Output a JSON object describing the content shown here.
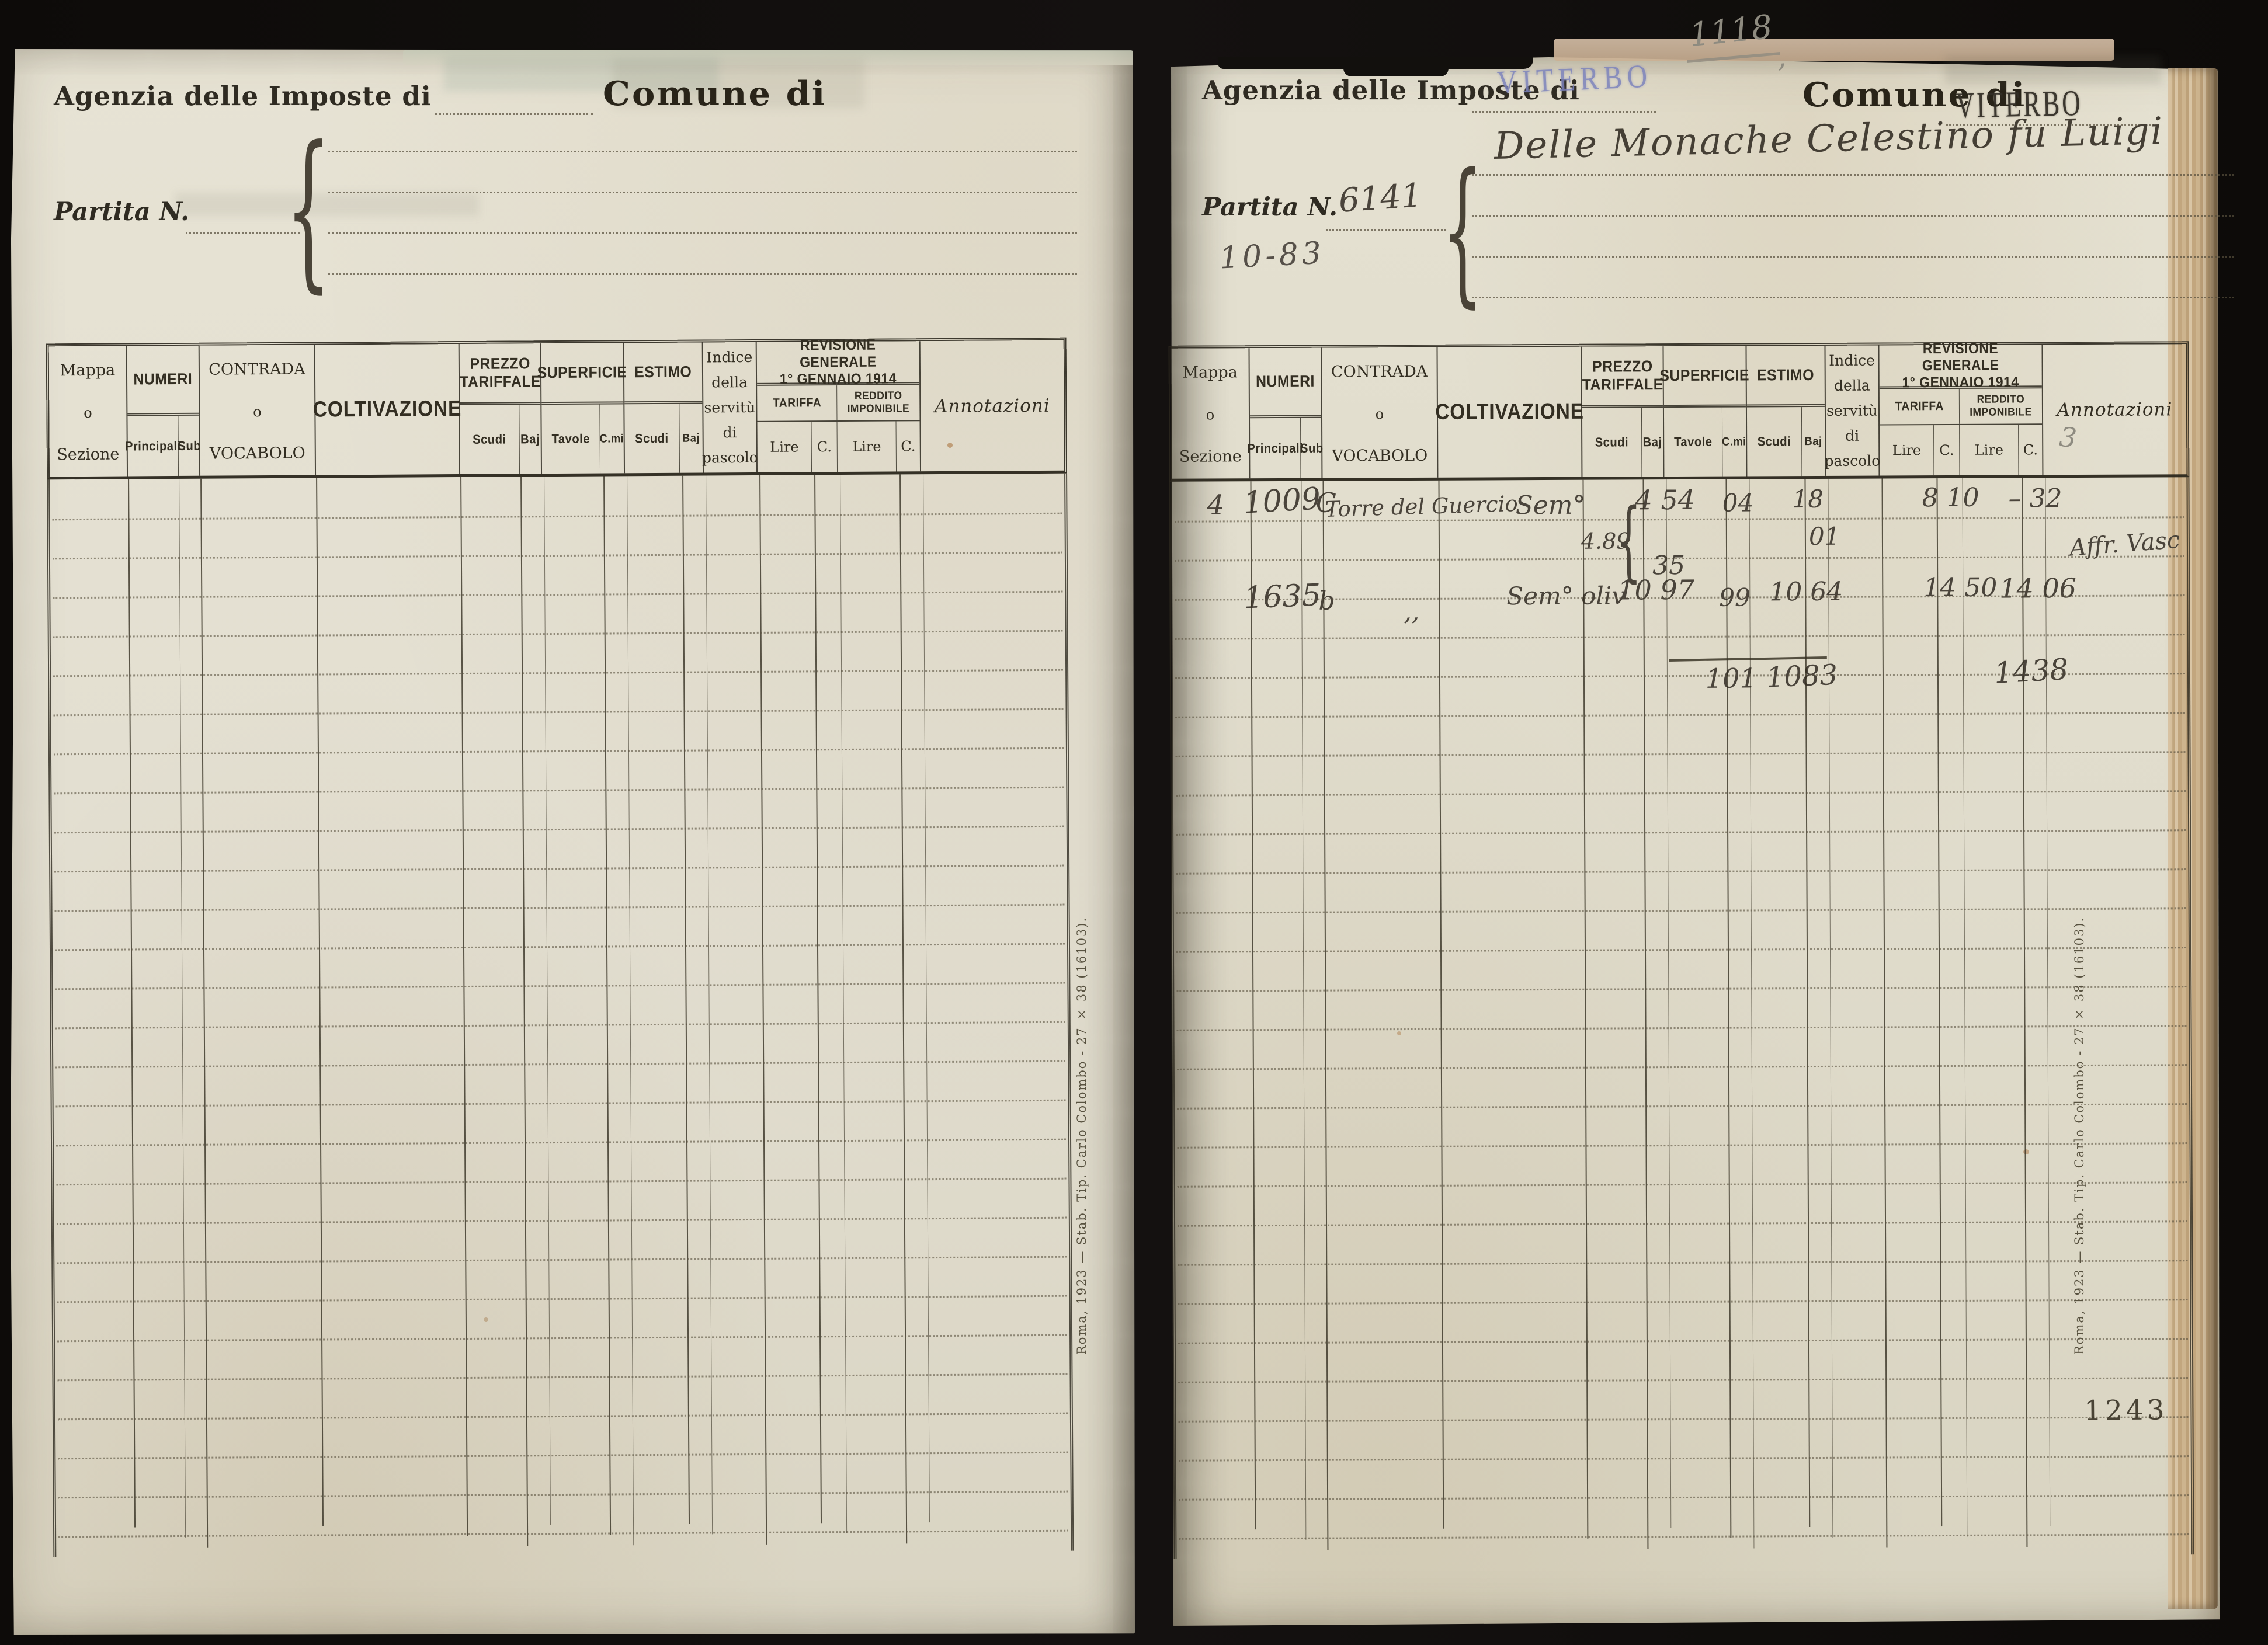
{
  "document": {
    "page_stamp": "1243",
    "imprint": "Roma, 1923 — Stab. Tip. Carlo Colombo - 27 × 38 (16103).",
    "brace_glyph": "{"
  },
  "left_page": {
    "agency_label": "Agenzia delle Imposte di",
    "comune_label": "Comune di",
    "partita_label": "Partita N."
  },
  "right_page": {
    "agency_label": "Agenzia delle Imposte di",
    "agency_stamp": "VITERBO",
    "comune_label": "Comune di",
    "comune_stamp": "VITERBO",
    "partita_label": "Partita N.",
    "partita_number": "6141",
    "partita_note": "10-83",
    "folio_pencil": "1118",
    "folio_pencil_mark": ",",
    "pencil_col_note": "3",
    "holder_name": "Delle Monache Celestino fu Luigi"
  },
  "table_header": {
    "mappa": "Mappa",
    "o1": "o",
    "sezione": "Sezione",
    "numeri": "NUMERI",
    "principali": "Principali",
    "sub": "Sub",
    "contrada": "CONTRADA",
    "o2": "o",
    "vocabolo": "VOCABOLO",
    "coltivazione": "COLTIVAZIONE",
    "prezzo_l1": "PREZZO",
    "prezzo_l2": "TARIFFALE",
    "scudi": "Scudi",
    "baj": "Baj",
    "superficie": "SUPERFICIE",
    "tavole": "Tavole",
    "cmi": "C.mi",
    "estimo": "ESTIMO",
    "indice_l1": "Indice",
    "indice_l2": "della",
    "indice_l3": "servitù",
    "indice_l4": "di",
    "indice_l5": "pascolo",
    "revisione_l1": "REVISIONE GENERALE",
    "revisione_l2": "1° GENNAIO 1914",
    "tariffa": "TARIFFA",
    "reddito_imponibile": "REDDITO IMPONIBILE",
    "lire": "Lire",
    "c": "C.",
    "annotazioni": "Annotazioni"
  },
  "entries": {
    "rows": [
      {
        "mappa": "4",
        "principali": "1009",
        "sub": "C",
        "contrada": "Torre del Guercio",
        "coltivazione": "Sem°",
        "prezzo_line1": "4 54",
        "prezzo_brace_note": "4.89",
        "prezzo_line2": "35",
        "superficie_cmi": "04",
        "estimo_scudi": "18",
        "estimo_baj_line2": "01",
        "tariffa": "8 10",
        "reddito": "– 32",
        "annotazione_line2": "Affr. Vasc"
      },
      {
        "principali": "1635",
        "sub": "b",
        "contrada_ditto": ",,",
        "coltivazione": "Sem° oliv",
        "prezzo": "10 97",
        "superficie_cmi": "99",
        "estimo": "10 64",
        "tariffa": "14 50",
        "reddito": "14 06"
      }
    ],
    "totals": {
      "superficie": "101",
      "estimo": "1083",
      "reddito": "1438"
    }
  }
}
